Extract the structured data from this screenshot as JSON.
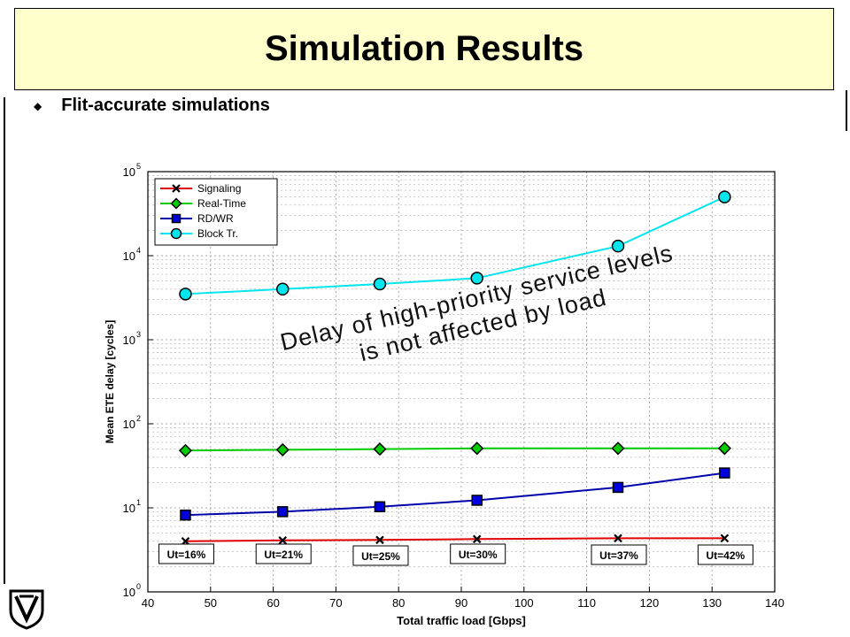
{
  "slide": {
    "title": "Simulation Results",
    "bullet": "Flit-accurate simulations",
    "annotation_line1": "Delay of high-priority service levels",
    "annotation_line2": "is not affected by load"
  },
  "chart_data": {
    "type": "line",
    "title": "",
    "xlabel": "Total traffic load [Gbps]",
    "ylabel": "Mean ETE delay [cycles]",
    "xlim": [
      40,
      140
    ],
    "ylim_log10": [
      0,
      5
    ],
    "yscale": "log",
    "grid": true,
    "legend_position": "top-left",
    "x_ticks": [
      40,
      50,
      60,
      70,
      80,
      90,
      100,
      110,
      120,
      130,
      140
    ],
    "y_tick_labels": [
      "10",
      "10",
      "10",
      "10",
      "10",
      "10"
    ],
    "y_tick_exponents": [
      "0",
      "1",
      "2",
      "3",
      "4",
      "5"
    ],
    "x": [
      46,
      61.5,
      77,
      92.5,
      115,
      132
    ],
    "series": [
      {
        "name": "Signaling",
        "color": "#e00000",
        "marker_color": "#000000",
        "marker": "x",
        "values": [
          4.0,
          4.1,
          4.15,
          4.25,
          4.35,
          4.35
        ]
      },
      {
        "name": "Real-Time",
        "color": "#00cc00",
        "marker_color": "#00cc00",
        "marker": "diamond",
        "values": [
          48,
          49,
          50,
          51,
          51,
          51
        ]
      },
      {
        "name": "RD/WR",
        "color": "#0000aa",
        "marker_color": "#0000dd",
        "marker": "square",
        "values": [
          8.2,
          9.0,
          10.3,
          12.3,
          17.5,
          26
        ]
      },
      {
        "name": "Block Tr.",
        "color": "#00e5ee",
        "marker_color": "#00e5ee",
        "marker": "circle",
        "values": [
          3500,
          4000,
          4600,
          5400,
          13000,
          50000
        ]
      }
    ],
    "utilization_labels": [
      "Ut=16%",
      "Ut=21%",
      "Ut=25%",
      "Ut=30%",
      "Ut=37%",
      "Ut=42%"
    ]
  }
}
